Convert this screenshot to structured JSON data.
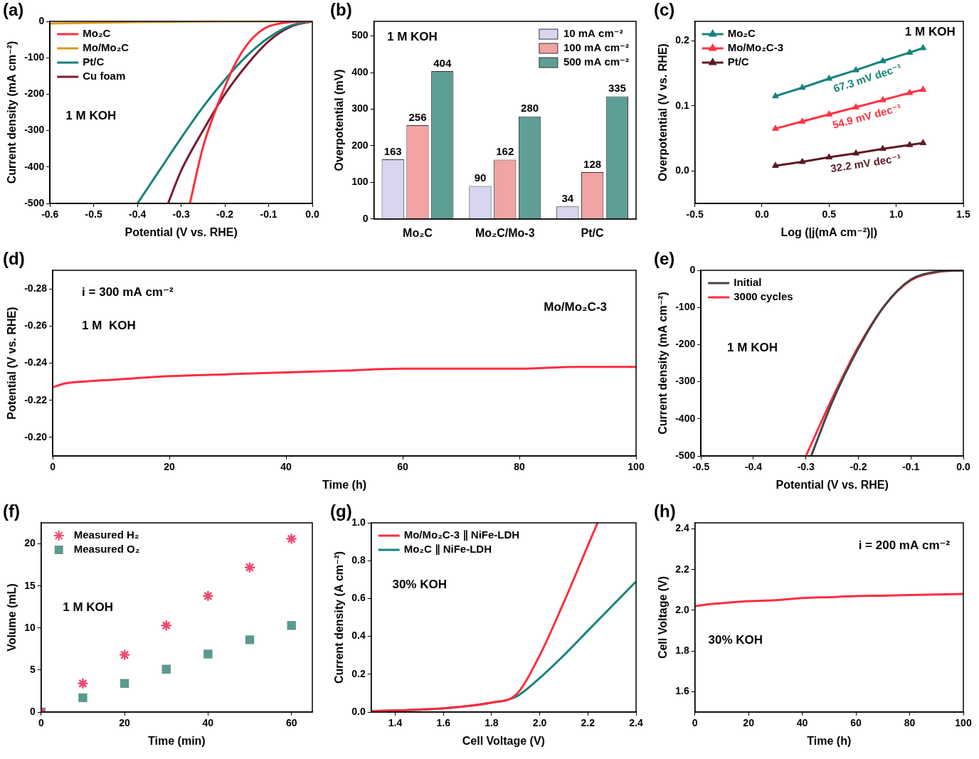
{
  "chart_data": [
    {
      "label": "(a)",
      "type": "line",
      "x_label": "Potential (V vs. RHE)",
      "y_label": "Current density (mA cm⁻²)",
      "annotations": [
        "1 M KOH"
      ],
      "legend": "upper left",
      "grid": false,
      "xlim": [
        -0.6,
        0
      ],
      "xticks": [
        -0.6,
        -0.5,
        -0.4,
        -0.3,
        -0.2,
        -0.1,
        {
          "value": 0,
          "label": "0.0"
        }
      ],
      "ylim": [
        -500,
        0
      ],
      "yticks": [
        -500,
        -400,
        -300,
        -200,
        -100,
        0
      ],
      "series": [
        {
          "name": "Mo₂C",
          "color": "#ff2d3f",
          "x": [
            -0.28,
            -0.25,
            -0.22,
            -0.2,
            -0.18,
            -0.15,
            -0.12,
            -0.1,
            -0.05,
            0
          ],
          "values": [
            -500,
            -345,
            -240,
            -180,
            -125,
            -65,
            -28,
            -14,
            -2,
            0
          ]
        },
        {
          "name": "Mo/Mo₂C",
          "color": "#d99a1e",
          "x": [
            -0.6,
            -0.5,
            -0.4,
            -0.3,
            -0.2,
            -0.1,
            0
          ],
          "values": [
            -6,
            -4,
            -2,
            -1,
            0,
            0,
            0
          ]
        },
        {
          "name": "Pt/C",
          "color": "#14837a",
          "x": [
            -0.4,
            -0.35,
            -0.3,
            -0.25,
            -0.2,
            -0.15,
            -0.1,
            -0.05,
            0
          ],
          "values": [
            -500,
            -410,
            -320,
            -235,
            -160,
            -95,
            -45,
            -12,
            0
          ]
        },
        {
          "name": "Cu foam",
          "color": "#7a1c30",
          "x": [
            -0.33,
            -0.3,
            -0.25,
            -0.2,
            -0.15,
            -0.1,
            -0.05,
            0
          ],
          "values": [
            -500,
            -410,
            -300,
            -200,
            -120,
            -55,
            -15,
            0
          ]
        }
      ]
    },
    {
      "label": "(b)",
      "type": "bar",
      "y_label": "Overpotential (mV)",
      "annotations": [
        "1 M KOH"
      ],
      "legend": "upper right",
      "grid": false,
      "data_labels": true,
      "categories": [
        "Mo₂C",
        "Mo₂C/Mo-3",
        "Pt/C"
      ],
      "ylim": [
        0,
        540
      ],
      "yticks": [
        0,
        100,
        200,
        300,
        400,
        500
      ],
      "series": [
        {
          "name": "10 mA cm⁻²",
          "color": "#d8d5f0",
          "values": [
            163,
            90,
            34
          ]
        },
        {
          "name": "100 mA cm⁻²",
          "color": "#f2a3a3",
          "values": [
            256,
            162,
            128
          ]
        },
        {
          "name": "500 mA cm⁻²",
          "color": "#5f9e96",
          "values": [
            404,
            280,
            335
          ]
        }
      ]
    },
    {
      "label": "(c)",
      "type": "line",
      "x_label": "Log (|j(mA cm⁻²)|)",
      "y_label": "Overpotential (V vs. RHE)",
      "annotations": [
        "1 M KOH"
      ],
      "legend": "upper left",
      "grid": false,
      "xlim": [
        -0.5,
        1.5
      ],
      "xticks": [
        -0.5,
        {
          "value": 0,
          "label": "0.0"
        },
        0.5,
        {
          "value": 1,
          "label": "1.0"
        },
        1.5
      ],
      "ylim": [
        -0.05,
        0.23
      ],
      "yticks": [
        {
          "value": 0,
          "label": "0.0"
        },
        0.1,
        0.2
      ],
      "series": [
        {
          "name": "Mo₂C",
          "color": "#14837a",
          "marker": "triangle",
          "annotation": "67.3 mV dec⁻¹",
          "x": [
            0.1,
            0.3,
            0.5,
            0.7,
            0.9,
            1.1,
            1.2
          ],
          "values": [
            0.115,
            0.128,
            0.142,
            0.155,
            0.169,
            0.182,
            0.189
          ]
        },
        {
          "name": "Mo/Mo₂C-3",
          "color": "#ff3344",
          "marker": "triangle",
          "annotation": "54.9 mV dec⁻¹",
          "x": [
            0.1,
            0.3,
            0.5,
            0.7,
            0.9,
            1.1,
            1.2
          ],
          "values": [
            0.065,
            0.076,
            0.087,
            0.098,
            0.109,
            0.12,
            0.125
          ]
        },
        {
          "name": "Pt/C",
          "color": "#5c1a26",
          "marker": "triangle",
          "annotation": "32.2 mV dec⁻¹",
          "x": [
            0.1,
            0.3,
            0.5,
            0.7,
            0.9,
            1.1,
            1.2
          ],
          "values": [
            0.008,
            0.014,
            0.021,
            0.027,
            0.034,
            0.04,
            0.043
          ]
        }
      ]
    },
    {
      "label": "(d)",
      "type": "line",
      "x_label": "Time (h)",
      "y_label": "Potential (V vs. RHE)",
      "annotations": [
        "i = 300 mA cm⁻²",
        "1 M  KOH",
        "Mo/Mo₂C-3"
      ],
      "grid": false,
      "xlim": [
        0,
        100
      ],
      "xticks": [
        0,
        20,
        40,
        60,
        80,
        100
      ],
      "ylim": [
        -0.19,
        -0.29
      ],
      "yticks": [
        -0.28,
        -0.26,
        -0.24,
        -0.22,
        {
          "value": -0.2,
          "label": "-0.20"
        }
      ],
      "series": [
        {
          "name": "Mo/Mo₂C-3",
          "color": "#ff2d3f",
          "x": [
            0,
            2,
            5,
            10,
            20,
            30,
            40,
            50,
            60,
            70,
            80,
            90,
            100
          ],
          "values": [
            -0.227,
            -0.229,
            -0.23,
            -0.231,
            -0.233,
            -0.234,
            -0.235,
            -0.236,
            -0.237,
            -0.237,
            -0.237,
            -0.238,
            -0.238
          ]
        }
      ]
    },
    {
      "label": "(e)",
      "type": "line",
      "x_label": "Potential (V vs. RHE)",
      "y_label": "Current density (mA cm⁻²)",
      "annotations": [
        "1 M KOH"
      ],
      "legend": "upper left",
      "grid": false,
      "xlim": [
        -0.5,
        0
      ],
      "xticks": [
        -0.5,
        -0.4,
        -0.3,
        -0.2,
        -0.1,
        {
          "value": 0,
          "label": "0.0"
        }
      ],
      "ylim": [
        -500,
        0
      ],
      "yticks": [
        -500,
        -400,
        -300,
        -200,
        -100,
        0
      ],
      "series": [
        {
          "name": "Initial",
          "color": "#444444",
          "x": [
            -0.29,
            -0.25,
            -0.2,
            -0.15,
            -0.1,
            -0.05,
            0
          ],
          "values": [
            -500,
            -355,
            -210,
            -95,
            -25,
            -4,
            0
          ]
        },
        {
          "name": "3000 cycles",
          "color": "#ff2d3f",
          "x": [
            -0.3,
            -0.25,
            -0.2,
            -0.15,
            -0.1,
            -0.05,
            0
          ],
          "values": [
            -500,
            -345,
            -205,
            -95,
            -27,
            -5,
            0
          ]
        }
      ]
    },
    {
      "label": "(f)",
      "type": "scatter",
      "x_label": "Time (min)",
      "y_label": "Volume (mL)",
      "annotations": [
        "1 M KOH"
      ],
      "legend": "upper left",
      "grid": false,
      "xlim": [
        0,
        65
      ],
      "xticks": [
        0,
        20,
        40,
        60
      ],
      "ylim": [
        0,
        22.5
      ],
      "yticks": [
        0,
        5,
        10,
        15,
        20
      ],
      "series": [
        {
          "name": "Measured H₂",
          "color": "#f04870",
          "marker": "star",
          "x": [
            0,
            10,
            20,
            30,
            40,
            50,
            60
          ],
          "values": [
            0,
            3.4,
            6.8,
            10.3,
            13.8,
            17.2,
            20.6
          ]
        },
        {
          "name": "Measured O₂",
          "color": "#5a9a90",
          "marker": "square",
          "x": [
            0,
            10,
            20,
            30,
            40,
            50,
            60
          ],
          "values": [
            0,
            1.7,
            3.4,
            5.1,
            6.9,
            8.6,
            10.3
          ]
        }
      ]
    },
    {
      "label": "(g)",
      "type": "line",
      "x_label": "Cell Voltage (V)",
      "y_label": "Current density (A cm⁻²)",
      "annotations": [
        "30% KOH"
      ],
      "legend": "upper left",
      "grid": false,
      "xlim": [
        1.3,
        2.4
      ],
      "xticks": [
        1.4,
        1.6,
        1.8,
        {
          "value": 2,
          "label": "2.0"
        },
        2.2,
        2.4
      ],
      "ylim": [
        0,
        1
      ],
      "yticks": [
        {
          "value": 0,
          "label": "0.0"
        },
        0.2,
        0.4,
        0.6,
        0.8,
        {
          "value": 1,
          "label": "1.0"
        }
      ],
      "series": [
        {
          "name": "Mo/Mo₂C-3 ∥ NiFe-LDH",
          "color": "#ff2d3f",
          "x": [
            1.3,
            1.6,
            1.8,
            1.9,
            2.0,
            2.1,
            2.2,
            2.24
          ],
          "values": [
            0.005,
            0.02,
            0.05,
            0.09,
            0.3,
            0.58,
            0.88,
            1.0
          ]
        },
        {
          "name": "Mo₂C ∥ NiFe-LDH",
          "color": "#14837a",
          "x": [
            1.3,
            1.6,
            1.8,
            1.9,
            2.0,
            2.1,
            2.2,
            2.3,
            2.4
          ],
          "values": [
            0.005,
            0.02,
            0.05,
            0.08,
            0.18,
            0.3,
            0.43,
            0.56,
            0.69
          ]
        }
      ]
    },
    {
      "label": "(h)",
      "type": "line",
      "x_label": "Time (h)",
      "y_label": "Cell Voltage (V)",
      "annotations": [
        "i = 200 mA cm⁻²",
        "30% KOH"
      ],
      "grid": false,
      "xlim": [
        0,
        100
      ],
      "xticks": [
        0,
        20,
        40,
        60,
        80,
        100
      ],
      "ylim": [
        1.5,
        2.43
      ],
      "yticks": [
        1.6,
        1.8,
        {
          "value": 2,
          "label": "2.0"
        },
        2.2,
        2.4
      ],
      "series": [
        {
          "name": "Mo/Mo₂C-3 ∥ NiFe-LDH",
          "color": "#ff2d3f",
          "x": [
            0,
            5,
            10,
            20,
            30,
            40,
            50,
            60,
            70,
            80,
            90,
            100
          ],
          "values": [
            2.02,
            2.03,
            2.035,
            2.045,
            2.05,
            2.06,
            2.065,
            2.07,
            2.072,
            2.075,
            2.078,
            2.08
          ]
        }
      ]
    }
  ]
}
